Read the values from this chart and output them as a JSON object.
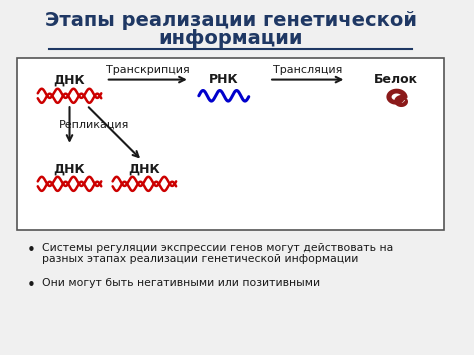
{
  "title_line1": "Этапы реализации генетической",
  "title_line2": "информации",
  "title_color": "#1F3864",
  "title_fontsize": 14,
  "bg_color": "#f0f0f0",
  "box_bg": "#ffffff",
  "bullet1": "Системы регуляции экспрессии генов могут действовать на\nразных этапах реализации генетической информации",
  "bullet2": "Они могут быть негативными или позитивными",
  "label_dnk": "ДНК",
  "label_rnk": "РНК",
  "label_belok": "Белок",
  "label_transkr": "Транскрипция",
  "label_translyac": "Трансляция",
  "label_replik": "Репликация",
  "label_dnk2": "ДНК",
  "label_dnk3": "ДНК",
  "dna_color": "#cc0000",
  "rna_color": "#0000cc",
  "protein_color": "#8B1A1A",
  "arrow_color": "#1a1a1a",
  "text_color": "#1a1a1a",
  "font_size_labels": 9,
  "font_size_small": 8
}
